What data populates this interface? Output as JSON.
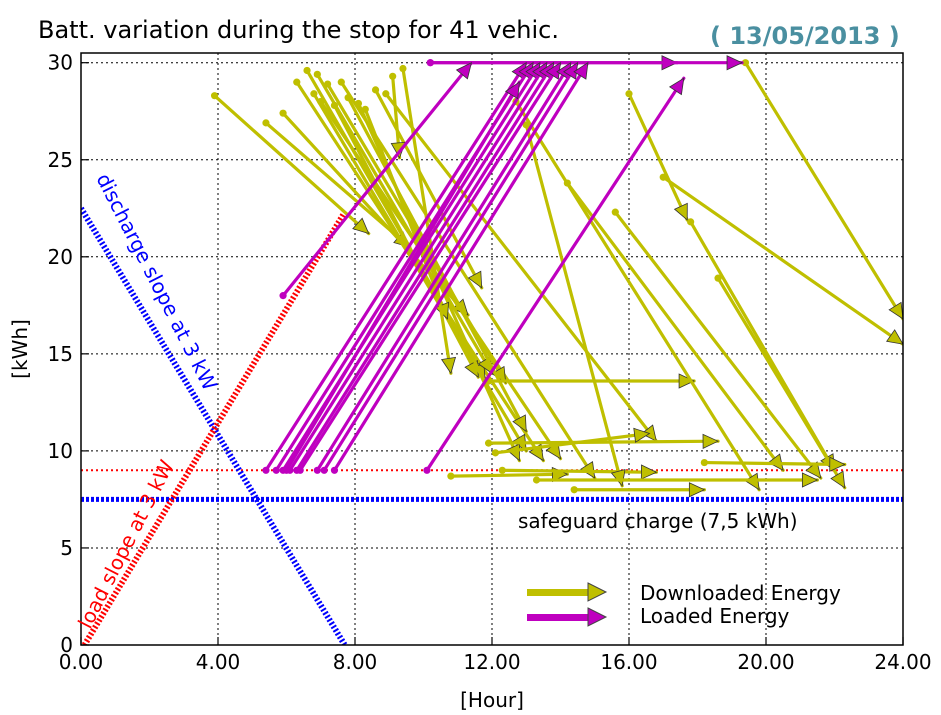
{
  "chart_data": {
    "type": "line",
    "title": "Batt. variation during the stop for 41 vehic.",
    "date_label": "( 13/05/2013 )",
    "xlabel": "[Hour]",
    "ylabel": "[kWh]",
    "xlim": [
      0,
      24
    ],
    "ylim": [
      0,
      30.5
    ],
    "grid": true,
    "x_ticks": [
      0,
      4,
      8,
      12,
      16,
      20,
      24
    ],
    "x_tick_labels": [
      "0.00",
      "4.00",
      "8.00",
      "12.00",
      "16.00",
      "20.00",
      "24.00"
    ],
    "y_ticks": [
      0,
      5,
      10,
      15,
      20,
      25,
      30
    ],
    "y_tick_labels": [
      "0",
      "5",
      "10",
      "15",
      "20",
      "25",
      "30"
    ],
    "colors": {
      "downloaded": "#bfbf00",
      "loaded": "#bf00bf",
      "discharge": "#0000ff",
      "load": "#ff0000"
    },
    "reference_lines": [
      {
        "kind": "horizontal",
        "y": 9.0,
        "color": "#ff0000",
        "style": "dotted"
      },
      {
        "kind": "horizontal",
        "y": 7.5,
        "color": "#0000ff",
        "style": "dense-dotted",
        "label": "safeguard charge (7,5 kWh)"
      },
      {
        "kind": "slope",
        "label": "discharge slope at 3 kW",
        "from": [
          0,
          22.5
        ],
        "to": [
          7.7,
          0
        ],
        "color": "#0000ff"
      },
      {
        "kind": "slope",
        "label": "load slope at 3 kW",
        "from": [
          0.1,
          0
        ],
        "to": [
          7.7,
          22.3
        ],
        "color": "#ff0000"
      }
    ],
    "legend": {
      "placement": "bottom-right",
      "entries": [
        {
          "label": "Downloaded Energy",
          "color": "#bfbf00"
        },
        {
          "label": "Loaded Energy",
          "color": "#bf00bf"
        }
      ]
    },
    "series": [
      {
        "segments": [
          [
            3.9,
            28.3,
            8.4,
            21.2
          ],
          [
            5.4,
            26.9,
            9.6,
            20.5
          ],
          [
            5.9,
            27.4,
            11.3,
            17.0
          ],
          [
            6.3,
            29.0,
            13.5,
            9.5
          ],
          [
            6.6,
            29.6,
            11.8,
            13.7
          ],
          [
            6.8,
            28.4,
            13.0,
            10.0
          ],
          [
            6.9,
            29.4,
            12.0,
            14.0
          ],
          [
            7.0,
            28.0,
            14.0,
            9.6
          ],
          [
            7.2,
            28.9,
            12.4,
            13.5
          ],
          [
            7.4,
            27.8,
            11.6,
            13.8
          ],
          [
            7.6,
            29.0,
            15.0,
            8.6
          ],
          [
            7.8,
            28.2,
            13.0,
            11.0
          ],
          [
            8.1,
            27.9,
            12.8,
            9.5
          ],
          [
            8.3,
            27.6,
            10.7,
            16.8
          ],
          [
            8.6,
            28.6,
            11.7,
            18.4
          ],
          [
            8.9,
            28.4,
            16.8,
            10.5
          ],
          [
            9.1,
            29.3,
            9.3,
            25.1
          ],
          [
            9.4,
            29.7,
            10.8,
            14.0
          ],
          [
            10.8,
            8.7,
            14.2,
            8.8
          ],
          [
            11.9,
            10.4,
            18.6,
            10.5
          ],
          [
            11.9,
            13.6,
            17.9,
            13.6
          ],
          [
            12.1,
            9.9,
            16.6,
            10.9
          ],
          [
            12.3,
            9.0,
            16.8,
            8.9
          ],
          [
            12.7,
            28.0,
            19.8,
            8.0
          ],
          [
            13.0,
            26.8,
            15.8,
            8.2
          ],
          [
            13.3,
            8.5,
            21.5,
            8.5
          ],
          [
            14.2,
            23.8,
            20.5,
            9.0
          ],
          [
            14.4,
            8.0,
            18.2,
            8.0
          ],
          [
            15.6,
            22.3,
            21.6,
            8.6
          ],
          [
            16.0,
            28.4,
            17.7,
            21.9
          ],
          [
            17.0,
            24.1,
            24.0,
            15.5
          ],
          [
            17.8,
            21.8,
            22.0,
            9.0
          ],
          [
            18.6,
            18.9,
            22.3,
            8.1
          ],
          [
            19.4,
            30.0,
            24.0,
            16.8
          ],
          [
            18.2,
            9.4,
            22.3,
            9.3
          ]
        ]
      },
      {
        "segments": [
          [
            10.2,
            30.0,
            17.4,
            30.0
          ],
          [
            10.2,
            30.0,
            19.3,
            30.0
          ],
          [
            5.4,
            9.0,
            13.0,
            30.0
          ],
          [
            5.7,
            9.0,
            13.2,
            30.0
          ],
          [
            5.9,
            9.0,
            13.4,
            30.0
          ],
          [
            6.1,
            9.0,
            13.6,
            30.0
          ],
          [
            6.3,
            9.0,
            13.8,
            30.0
          ],
          [
            6.4,
            9.0,
            14.0,
            30.0
          ],
          [
            6.9,
            9.0,
            14.3,
            30.0
          ],
          [
            7.1,
            9.0,
            14.5,
            30.0
          ],
          [
            7.4,
            9.0,
            14.8,
            30.0
          ],
          [
            5.9,
            18.0,
            11.4,
            30.0
          ],
          [
            10.1,
            9.0,
            17.6,
            29.2
          ],
          [
            6.0,
            9.0,
            12.8,
            29.0
          ]
        ]
      }
    ]
  }
}
